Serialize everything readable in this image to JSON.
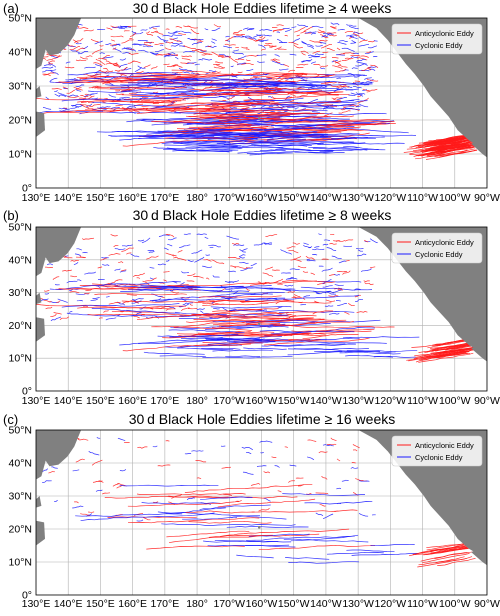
{
  "panels": [
    {
      "id": "a",
      "label": "(a)",
      "title": "30 d Black Hole Eddies lifetime ≥ 4 weeks",
      "density": 1.0
    },
    {
      "id": "b",
      "label": "(b)",
      "title": "30 d Black Hole Eddies lifetime ≥ 8 weeks",
      "density": 0.45
    },
    {
      "id": "c",
      "label": "(c)",
      "title": "30 d Black Hole Eddies lifetime ≥ 16 weeks",
      "density": 0.14
    }
  ],
  "legend": {
    "anticyclonic": "Anticyclonic Eddy",
    "cyclonic": "Cyclonic Eddy"
  },
  "x_ticks": [
    "130°E",
    "140°E",
    "150°E",
    "160°E",
    "170°E",
    "180°",
    "170°W",
    "160°W",
    "150°W",
    "140°W",
    "130°W",
    "120°W",
    "110°W",
    "100°W",
    "90°W"
  ],
  "y_ticks": [
    "0°",
    "10°N",
    "20°N",
    "30°N",
    "40°N",
    "50°N"
  ],
  "colors": {
    "anticyclonic": "#ff1a1a",
    "cyclonic": "#1a1aff",
    "land": "#808080",
    "grid": "#b0b0b0"
  }
}
